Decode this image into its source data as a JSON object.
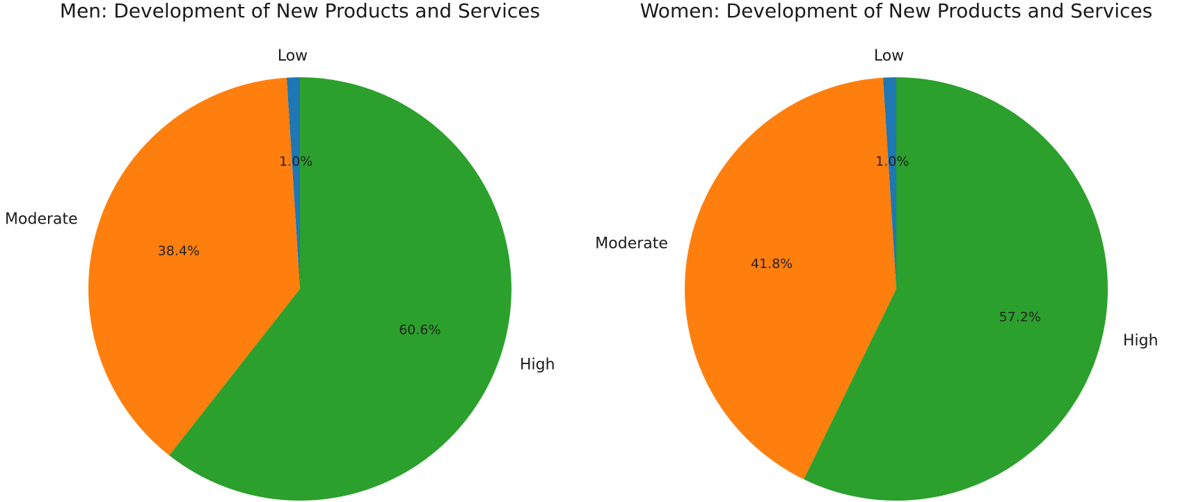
{
  "chart_data": [
    {
      "type": "pie",
      "title": "Men: Development of New Products and Services",
      "slices": [
        {
          "label": "Low",
          "value": 1.0,
          "pct_label": "1.0%",
          "color": "#1f77b4"
        },
        {
          "label": "Moderate",
          "value": 38.4,
          "pct_label": "38.4%",
          "color": "#ff7f0e"
        },
        {
          "label": "High",
          "value": 60.6,
          "pct_label": "60.6%",
          "color": "#2ca02c"
        }
      ],
      "start_angle_deg": 90,
      "direction": "counterclockwise",
      "legend": "none"
    },
    {
      "type": "pie",
      "title": "Women: Development of New Products and Services",
      "slices": [
        {
          "label": "Low",
          "value": 1.0,
          "pct_label": "1.0%",
          "color": "#1f77b4"
        },
        {
          "label": "Moderate",
          "value": 41.8,
          "pct_label": "41.8%",
          "color": "#ff7f0e"
        },
        {
          "label": "High",
          "value": 57.2,
          "pct_label": "57.2%",
          "color": "#2ca02c"
        }
      ],
      "start_angle_deg": 90,
      "direction": "counterclockwise",
      "legend": "none"
    }
  ]
}
